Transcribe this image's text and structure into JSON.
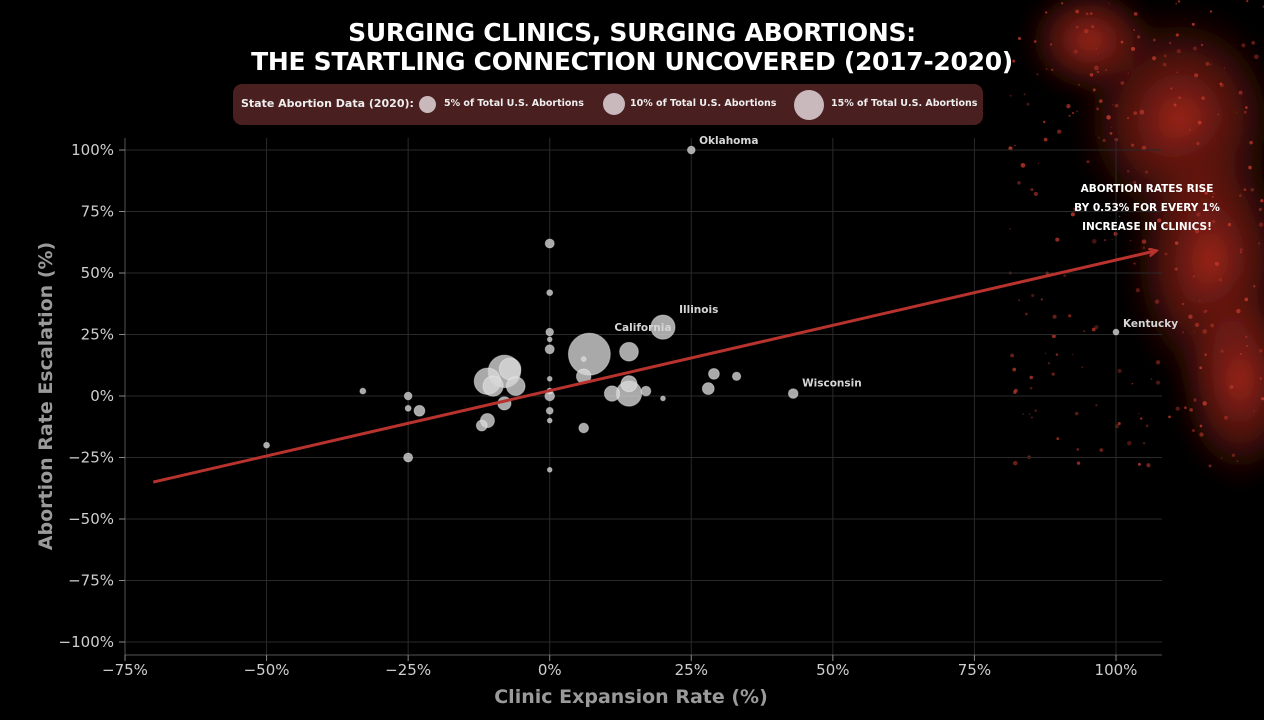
{
  "title_line1": "SURGING CLINICS, SURGING ABORTIONS:",
  "title_line2": "THE STARTLING CONNECTION UNCOVERED (2017-2020)",
  "legend": {
    "title": "State Abortion Data (2020):",
    "items": [
      {
        "label": "5% of Total U.S. Abortions",
        "share": 5
      },
      {
        "label": "10% of Total U.S. Abortions",
        "share": 10
      },
      {
        "label": "15% of Total U.S. Abortions",
        "share": 15
      }
    ]
  },
  "callout": {
    "line1": "ABORTION RATES RISE",
    "line2": "BY 0.53% FOR EVERY 1%",
    "line3": "INCREASE IN CLINICS!"
  },
  "colors": {
    "background": "#000000",
    "bubble": "#d8d8d8",
    "trend": "#b8322e",
    "legend_bg": "#4a1f1f",
    "splatter": "#b02a1f"
  },
  "chart_data": {
    "type": "scatter",
    "xlabel": "Clinic Expansion Rate (%)",
    "ylabel": "Abortion Rate Escalation (%)",
    "xlim": [
      -75,
      100
    ],
    "ylim": [
      -100,
      100
    ],
    "xticks": [
      -75,
      -50,
      -25,
      0,
      25,
      50,
      75,
      100
    ],
    "yticks": [
      -100,
      -75,
      -50,
      -25,
      0,
      25,
      50,
      75,
      100
    ],
    "xtick_labels": [
      "−75%",
      "−50%",
      "−25%",
      "0%",
      "25%",
      "50%",
      "75%",
      "100%"
    ],
    "ytick_labels": [
      "−100%",
      "−75%",
      "−50%",
      "−25%",
      "0%",
      "25%",
      "50%",
      "75%",
      "100%"
    ],
    "grid": true,
    "trendline": {
      "slope": 0.53,
      "from": [
        -70,
        -35
      ],
      "to": [
        107,
        59
      ]
    },
    "points": [
      {
        "x": 25,
        "y": 100,
        "share": 0.5,
        "label": "Oklahoma"
      },
      {
        "x": 100,
        "y": 26,
        "share": 0.3,
        "label": "Kentucky"
      },
      {
        "x": 43,
        "y": 1,
        "share": 0.8,
        "label": "Wisconsin"
      },
      {
        "x": 20,
        "y": 28,
        "share": 5.0,
        "label": "Illinois"
      },
      {
        "x": 7,
        "y": 17,
        "share": 15.0,
        "label": "California"
      },
      {
        "x": 0,
        "y": 62,
        "share": 0.7
      },
      {
        "x": 0,
        "y": 42,
        "share": 0.3
      },
      {
        "x": 0,
        "y": 26,
        "share": 0.5
      },
      {
        "x": 0,
        "y": 23,
        "share": 0.2
      },
      {
        "x": 0,
        "y": 19,
        "share": 0.7
      },
      {
        "x": 0,
        "y": 7,
        "share": 0.2
      },
      {
        "x": 0,
        "y": 2,
        "share": 0.3
      },
      {
        "x": 0,
        "y": 0,
        "share": 0.8
      },
      {
        "x": 0,
        "y": -6,
        "share": 0.4
      },
      {
        "x": 0,
        "y": -10,
        "share": 0.2
      },
      {
        "x": 0,
        "y": -30,
        "share": 0.1
      },
      {
        "x": 6,
        "y": 15,
        "share": 0.2
      },
      {
        "x": 6,
        "y": 8,
        "share": 1.8
      },
      {
        "x": 6,
        "y": -13,
        "share": 0.8
      },
      {
        "x": 14,
        "y": 18,
        "share": 3.0
      },
      {
        "x": 14,
        "y": 5,
        "share": 2.2
      },
      {
        "x": 14,
        "y": 1,
        "share": 5.5
      },
      {
        "x": 11,
        "y": 1,
        "share": 2.0
      },
      {
        "x": 17,
        "y": 2,
        "share": 0.8
      },
      {
        "x": 20,
        "y": -1,
        "share": 0.2
      },
      {
        "x": 28,
        "y": 3,
        "share": 1.2
      },
      {
        "x": 29,
        "y": 9,
        "share": 1.0
      },
      {
        "x": 33,
        "y": 8,
        "share": 0.6
      },
      {
        "x": -11,
        "y": 6,
        "share": 6.0
      },
      {
        "x": -8,
        "y": 10,
        "share": 9.0
      },
      {
        "x": -7,
        "y": 11,
        "share": 4.0
      },
      {
        "x": -10,
        "y": 4,
        "share": 3.5
      },
      {
        "x": -6,
        "y": 4,
        "share": 3.0
      },
      {
        "x": -8,
        "y": -3,
        "share": 1.5
      },
      {
        "x": -11,
        "y": -10,
        "share": 1.7
      },
      {
        "x": -12,
        "y": -12,
        "share": 1.0
      },
      {
        "x": -23,
        "y": -6,
        "share": 1.0
      },
      {
        "x": -25,
        "y": 0,
        "share": 0.5
      },
      {
        "x": -25,
        "y": -5,
        "share": 0.3
      },
      {
        "x": -25,
        "y": -25,
        "share": 0.7
      },
      {
        "x": -33,
        "y": 2,
        "share": 0.3
      },
      {
        "x": -50,
        "y": -20,
        "share": 0.3
      }
    ]
  }
}
